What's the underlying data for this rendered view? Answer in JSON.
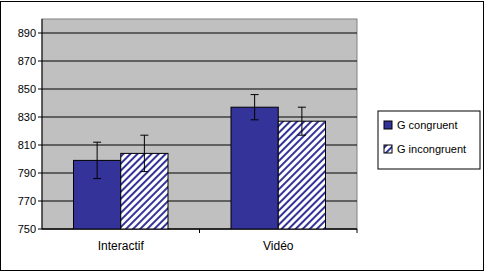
{
  "chart_data": {
    "type": "bar",
    "categories": [
      "Interactif",
      "Vidéo"
    ],
    "series": [
      {
        "name": "G congruent",
        "color": "#333399",
        "values": [
          799,
          837
        ],
        "errors": [
          13,
          9
        ]
      },
      {
        "name": "G incongruent",
        "color": "#333399",
        "values": [
          804,
          827
        ],
        "errors": [
          13,
          10
        ]
      }
    ],
    "ylim": [
      750,
      900
    ],
    "yticks": [
      750,
      770,
      790,
      810,
      830,
      850,
      870,
      890
    ],
    "grid": true,
    "legend": "right"
  }
}
